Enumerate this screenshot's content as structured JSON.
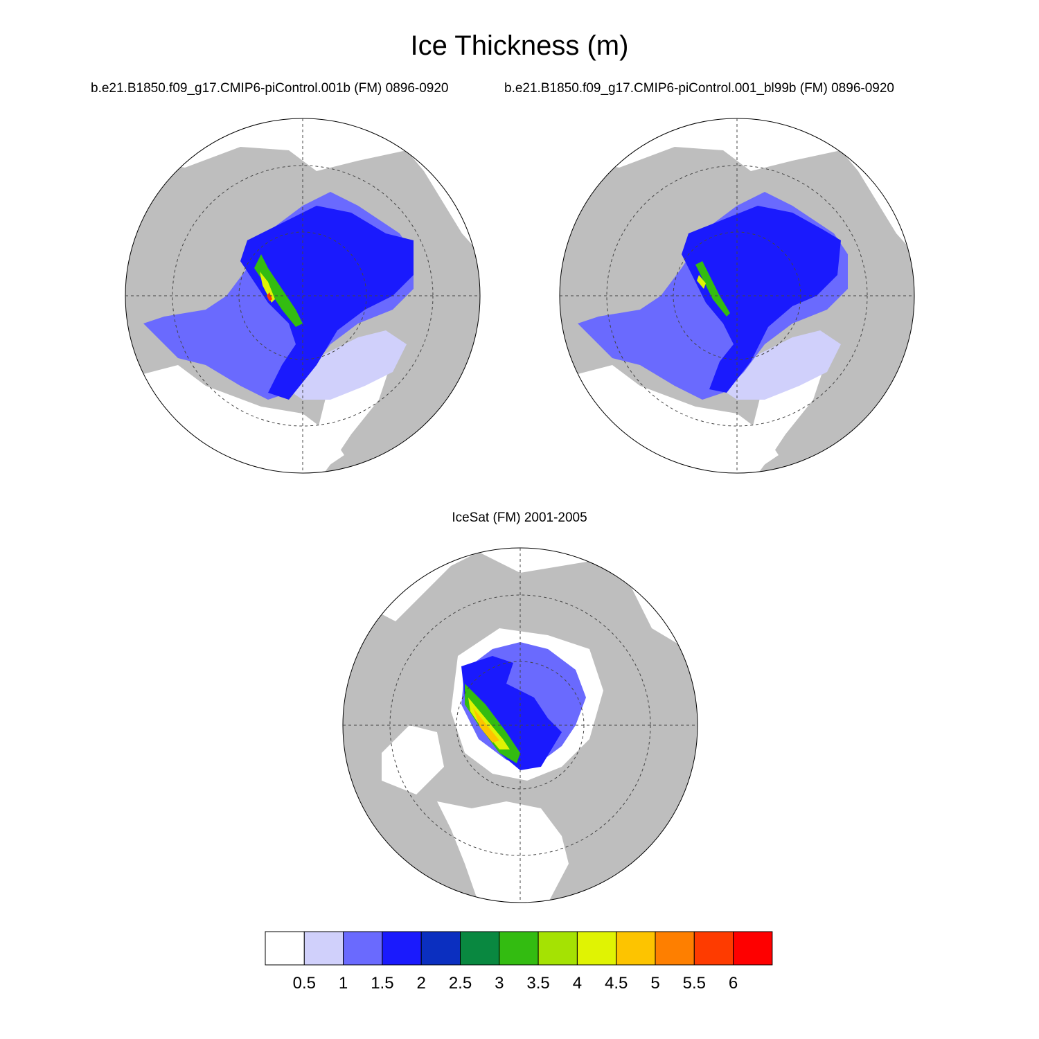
{
  "title": "Ice Thickness (m)",
  "panels": [
    {
      "id": "p1",
      "title": "b.e21.B1850.f09_g17.CMIP6-piControl.001b (FM) 0896-0920"
    },
    {
      "id": "p2",
      "title": "b.e21.B1850.f09_g17.CMIP6-piControl.001_bl99b (FM) 0896-0920"
    },
    {
      "id": "p3",
      "title": "IceSat (FM) 2001-2005"
    }
  ],
  "colorbar": {
    "labels": [
      "0.5",
      "1",
      "1.5",
      "2",
      "2.5",
      "3",
      "3.5",
      "4",
      "4.5",
      "5",
      "5.5",
      "6"
    ],
    "colors": [
      "#ffffff",
      "#d0d0fb",
      "#6a6afe",
      "#1a1afd",
      "#0b2fc0",
      "#098840",
      "#33bc11",
      "#a5e203",
      "#e0f303",
      "#fdc400",
      "#fe7f00",
      "#fe3b00",
      "#fe0000"
    ]
  },
  "land_color": "#bebebe",
  "ocean_color": "#ffffff"
}
